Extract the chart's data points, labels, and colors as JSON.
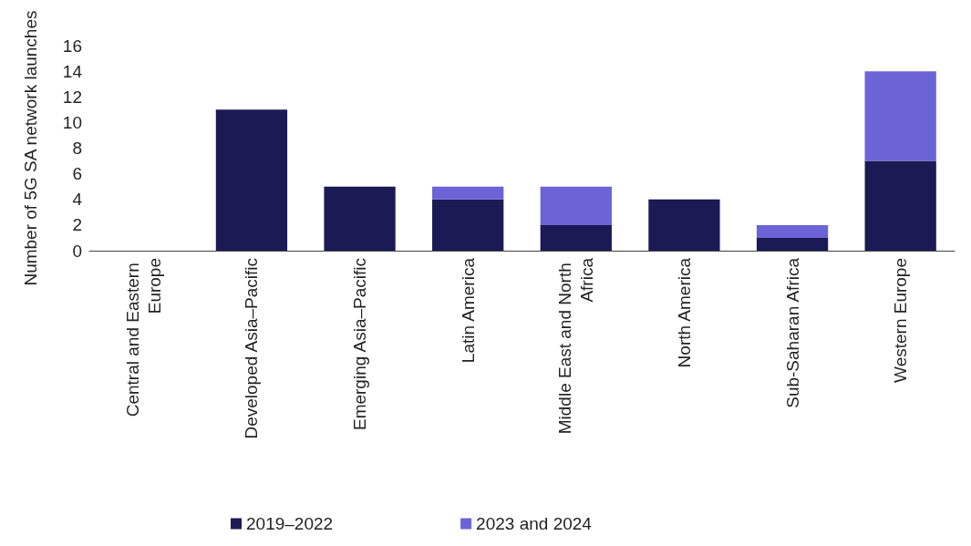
{
  "chart_data": {
    "type": "bar",
    "stacked": true,
    "ylabel": "Number of 5G SA network launches",
    "categories": [
      "Central and Eastern Europe",
      "Developed Asia–Pacific",
      "Emerging Asia–Pacific",
      "Latin America",
      "Middle East and North Africa",
      "North America",
      "Sub-Saharan Africa",
      "Western Europe"
    ],
    "series": [
      {
        "name": "2019–2022",
        "color": "#1b1a55",
        "values": [
          0,
          11,
          5,
          4,
          2,
          4,
          1,
          7
        ]
      },
      {
        "name": "2023 and 2024",
        "color": "#6b63d6",
        "values": [
          0,
          0,
          0,
          1,
          3,
          0,
          1,
          7
        ]
      }
    ],
    "ylim": [
      0,
      16
    ],
    "yticks": [
      0,
      2,
      4,
      6,
      8,
      10,
      12,
      14,
      16
    ],
    "grid": false,
    "legend": "bottom"
  }
}
